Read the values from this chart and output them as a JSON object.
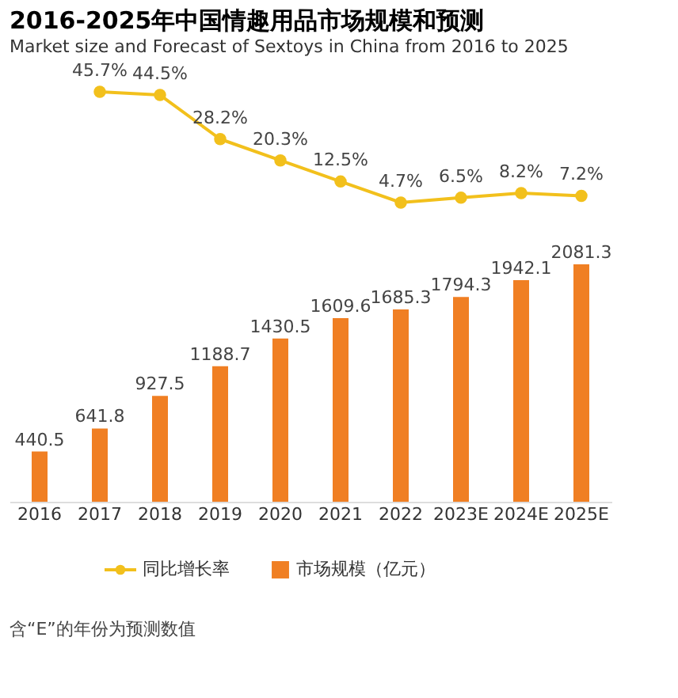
{
  "chart_data": [
    {
      "type": "line",
      "title": "2016-2025年中国情趣用品市场规模和预测",
      "subtitle": "Market size and Forecast of Sextoys in China from 2016 to 2025",
      "categories": [
        null,
        null,
        null,
        null,
        null,
        null,
        null,
        null,
        null,
        null
      ],
      "series": [
        {
          "name": "同比增长率",
          "color": "#f2c01c",
          "values": [
            null,
            45.7,
            44.5,
            28.2,
            20.3,
            12.5,
            4.7,
            6.5,
            8.2,
            7.2
          ],
          "value_labels": [
            null,
            "45.7%",
            "44.5%",
            "28.2%",
            "20.3%",
            "12.5%",
            "4.7%",
            "6.5%",
            "8.2%",
            "7.2%"
          ]
        }
      ],
      "marker": "circle",
      "tick_labels": false,
      "grid": false
    },
    {
      "type": "bar",
      "categories": [
        "2016",
        "2017",
        "2018",
        "2019",
        "2020",
        "2021",
        "2022",
        "2023E",
        "2024E",
        "2025E"
      ],
      "series": [
        {
          "name": "市场规模（亿元）",
          "color": "#f07f23",
          "values": [
            440.5,
            641.8,
            927.5,
            1188.7,
            1430.5,
            1609.6,
            1685.3,
            1794.3,
            1942.1,
            2081.3
          ]
        }
      ],
      "data_labels": true,
      "tick_labels": "x",
      "grid": false,
      "legend": "bottom",
      "annotations": [
        "含“E”的年份为预测数值"
      ]
    }
  ]
}
